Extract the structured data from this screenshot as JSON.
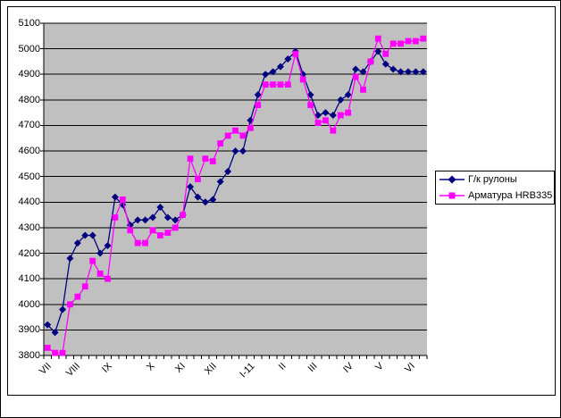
{
  "chart_data": {
    "type": "line",
    "title": "",
    "xlabel": "",
    "ylabel": "",
    "ylim": [
      3800,
      5100
    ],
    "ytick_step": 100,
    "grid": true,
    "plot_background": "#c0c0c0",
    "gridline_color": "#000000",
    "legend_position": "right",
    "x_labels": [
      "VII",
      "VIII",
      "IX",
      "X",
      "XI",
      "XII",
      "I-11",
      "II",
      "III",
      "IV",
      "V",
      "VI"
    ],
    "series": [
      {
        "name": "Г/к рулоны",
        "color": "#000080",
        "marker": "diamond",
        "values": [
          3920,
          3890,
          3980,
          4180,
          4240,
          4270,
          4270,
          4200,
          4230,
          4420,
          4390,
          4310,
          4330,
          4330,
          4340,
          4380,
          4340,
          4330,
          4350,
          4460,
          4420,
          4400,
          4410,
          4480,
          4520,
          4600,
          4600,
          4720,
          4820,
          4900,
          4910,
          4930,
          4960,
          4990,
          4900,
          4820,
          4740,
          4750,
          4740,
          4800,
          4820,
          4920,
          4910,
          4950,
          4990,
          4940,
          4920,
          4910,
          4910,
          4910,
          4910
        ]
      },
      {
        "name": "Арматура HRB335",
        "color": "#ff00ff",
        "marker": "square",
        "values": [
          3830,
          3810,
          3810,
          4000,
          4030,
          4070,
          4170,
          4120,
          4100,
          4340,
          4410,
          4290,
          4240,
          4240,
          4290,
          4270,
          4280,
          4300,
          4350,
          4570,
          4490,
          4570,
          4560,
          4630,
          4660,
          4680,
          4660,
          4690,
          4780,
          4860,
          4860,
          4860,
          4860,
          4980,
          4880,
          4780,
          4710,
          4720,
          4680,
          4740,
          4750,
          4890,
          4840,
          4950,
          5040,
          4980,
          5020,
          5020,
          5030,
          5030,
          5040
        ]
      }
    ]
  }
}
